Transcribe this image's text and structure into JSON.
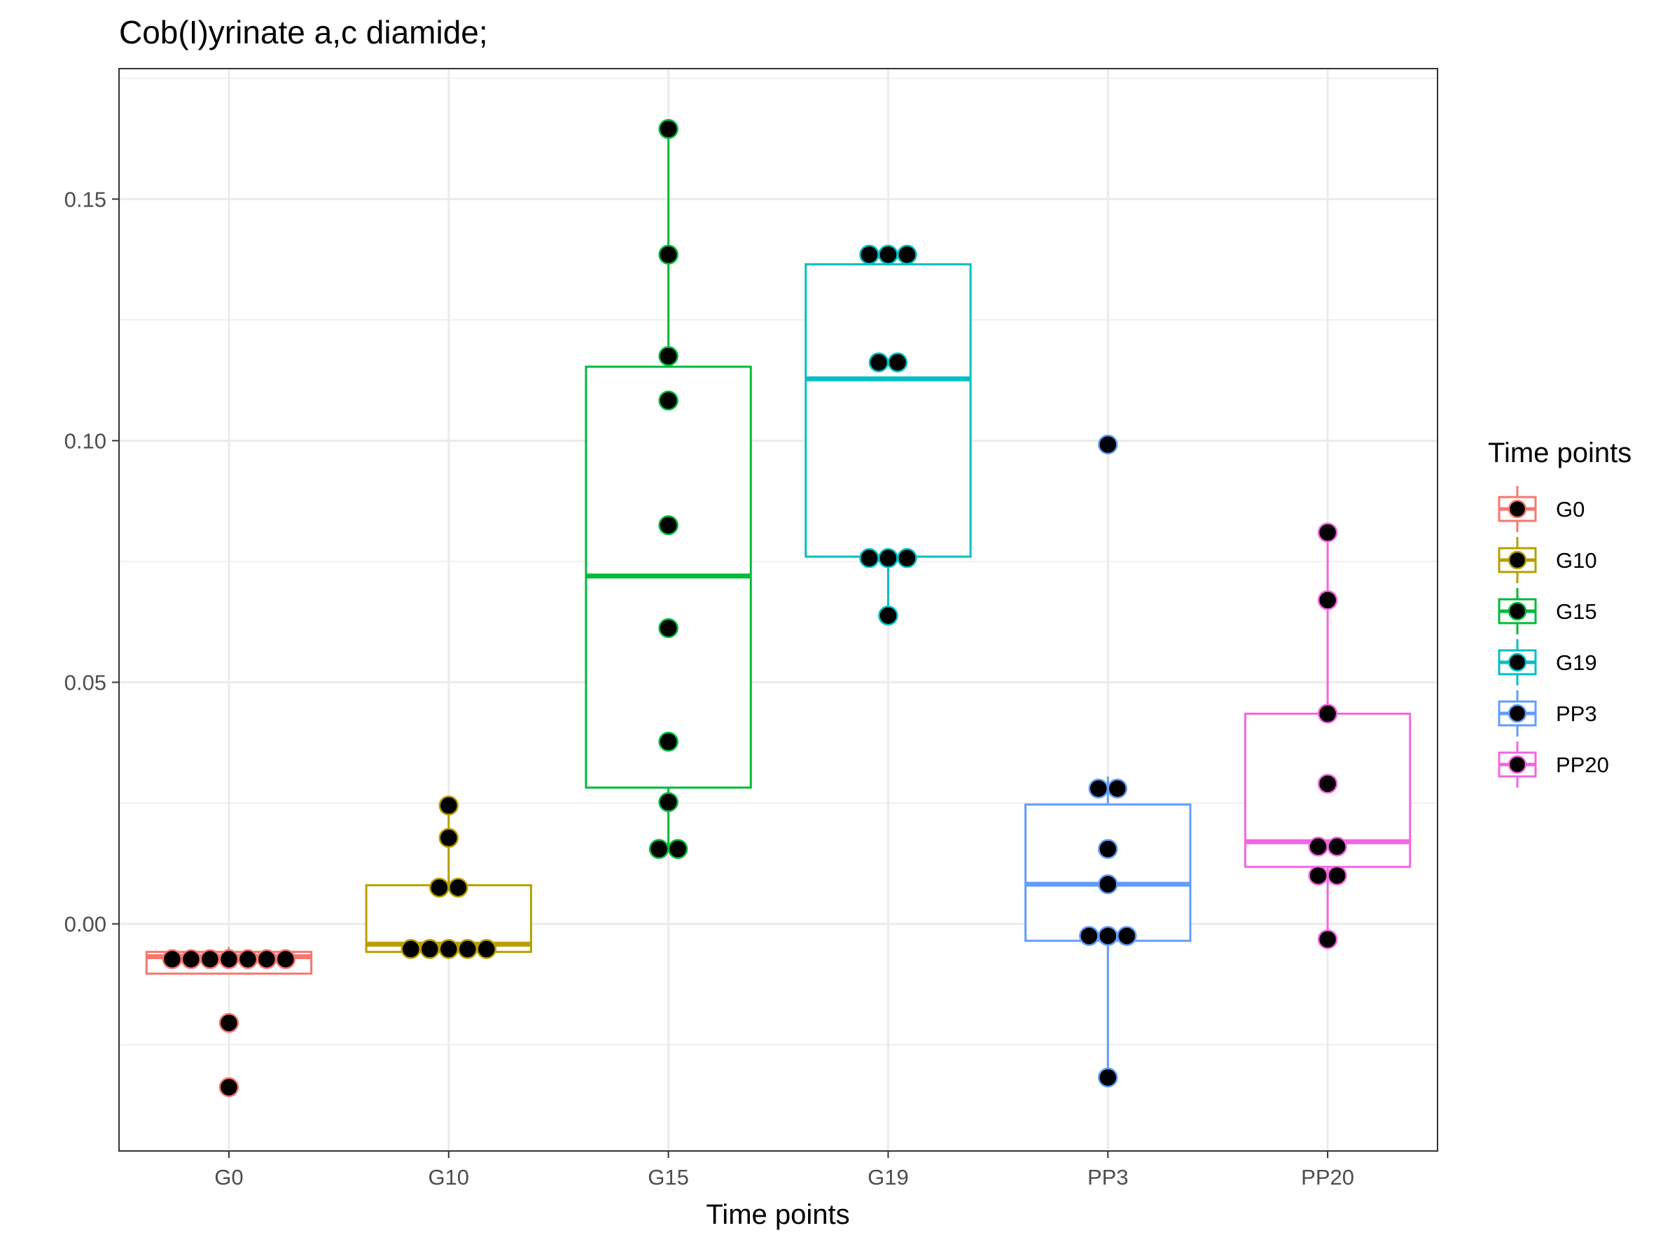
{
  "chart_data": {
    "type": "boxplot",
    "title": "Cob(I)yrinate a,c diamide;",
    "xlabel": "Time points",
    "ylabel": "",
    "categories": [
      "G0",
      "G10",
      "G15",
      "G19",
      "PP3",
      "PP20"
    ],
    "ylim": [
      -0.047,
      0.177
    ],
    "yticks": [
      0.0,
      0.05,
      0.1,
      0.15
    ],
    "ytick_labels": [
      "0.00",
      "0.05",
      "0.10",
      "0.15"
    ],
    "grid": true,
    "legend_title": "Time points",
    "legend_position": "right",
    "series": [
      {
        "name": "G0",
        "color": "#F8766D",
        "box": {
          "q1": -0.0103,
          "median": -0.0068,
          "q3": -0.0058,
          "whisker_low": -0.0103,
          "whisker_high": -0.0048
        },
        "points": [
          -0.0073,
          -0.0073,
          -0.0073,
          -0.0073,
          -0.0073,
          -0.0073,
          -0.0073,
          -0.0205,
          -0.0338
        ]
      },
      {
        "name": "G10",
        "color": "#B79F00",
        "box": {
          "q1": -0.0058,
          "median": -0.0042,
          "q3": 0.008,
          "whisker_low": -0.0058,
          "whisker_high": 0.0245
        },
        "points": [
          0.0245,
          0.0178,
          0.0075,
          0.0075,
          -0.0052,
          -0.0052,
          -0.0052,
          -0.0052,
          -0.0052
        ]
      },
      {
        "name": "G15",
        "color": "#00BA38",
        "box": {
          "q1": 0.0282,
          "median": 0.072,
          "q3": 0.1153,
          "whisker_low": 0.0155,
          "whisker_high": 0.1645
        },
        "points": [
          0.1645,
          0.1385,
          0.1175,
          0.1083,
          0.0825,
          0.0612,
          0.0377,
          0.0252,
          0.0155,
          0.0155
        ]
      },
      {
        "name": "G19",
        "color": "#00BFC4",
        "box": {
          "q1": 0.076,
          "median": 0.1128,
          "q3": 0.1365,
          "whisker_low": 0.0638,
          "whisker_high": 0.1385
        },
        "points": [
          0.1385,
          0.1385,
          0.1385,
          0.1162,
          0.1162,
          0.0757,
          0.0757,
          0.0757,
          0.0638
        ]
      },
      {
        "name": "PP3",
        "color": "#619CFF",
        "box": {
          "q1": -0.0035,
          "median": 0.0082,
          "q3": 0.0247,
          "whisker_low": -0.0318,
          "whisker_high": 0.0305
        },
        "points": [
          0.0992,
          0.028,
          0.028,
          0.0155,
          0.0082,
          -0.0025,
          -0.0025,
          -0.0025,
          -0.0318
        ]
      },
      {
        "name": "PP20",
        "color": "#F564E3",
        "box": {
          "q1": 0.0118,
          "median": 0.017,
          "q3": 0.0435,
          "whisker_low": -0.0032,
          "whisker_high": 0.081
        },
        "points": [
          0.081,
          0.067,
          0.0435,
          0.029,
          0.016,
          0.016,
          0.01,
          0.01,
          -0.0032
        ]
      }
    ]
  }
}
